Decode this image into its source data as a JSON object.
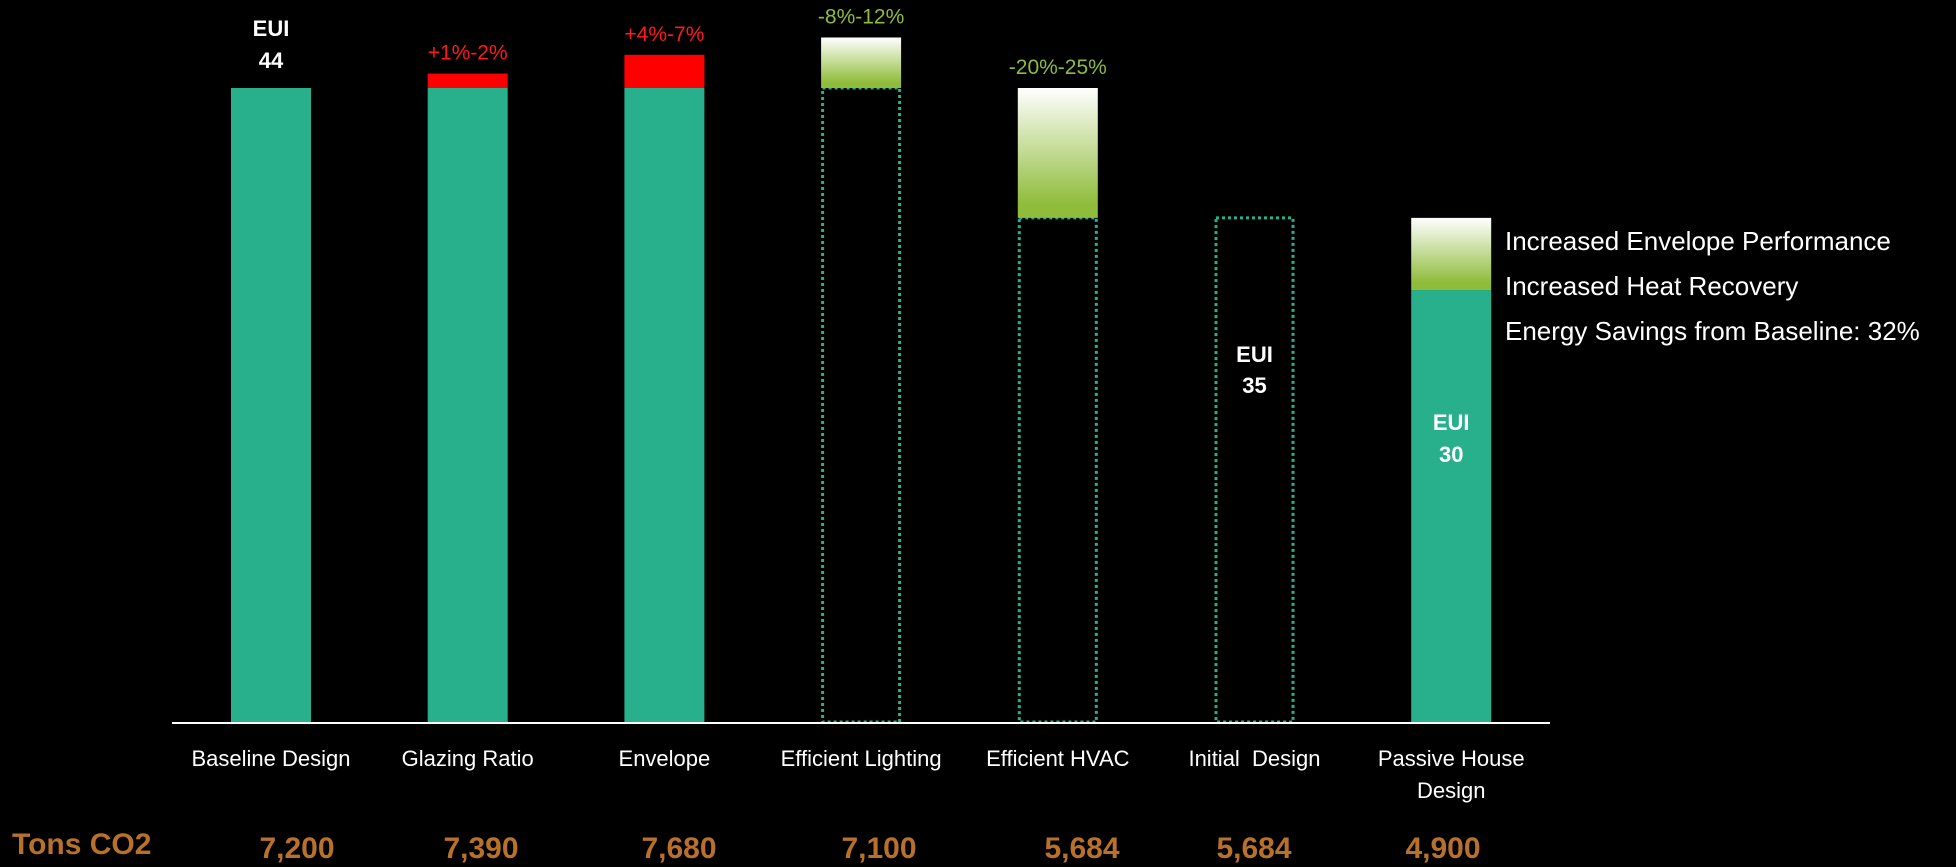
{
  "chart_data": {
    "type": "bar",
    "categories": [
      "Baseline Design",
      "Glazing Ratio",
      "Envelope",
      "Efficient Lighting",
      "Efficient HVAC",
      "Initial  Design",
      "Passive House Design"
    ],
    "base_values": [
      44,
      44,
      44,
      0,
      0,
      0,
      30
    ],
    "outline_values": [
      0,
      0,
      0,
      44,
      35,
      35,
      0
    ],
    "change_ranges": [
      null,
      [
        44,
        45
      ],
      [
        44,
        46.3
      ],
      [
        44,
        47.5
      ],
      [
        35,
        44
      ],
      null,
      [
        30,
        35
      ]
    ],
    "change_labels": [
      "",
      "+1%-2%",
      "+4%-7%",
      "-8%-12%",
      "-20%-25%",
      "",
      ""
    ],
    "change_kind": [
      "",
      "increase",
      "increase",
      "saving",
      "saving",
      "",
      "saving"
    ],
    "eui_labels": [
      {
        "index": 0,
        "title": "EUI",
        "value": "44"
      },
      {
        "index": 5,
        "title": "EUI",
        "value": "35"
      },
      {
        "index": 6,
        "title": "EUI",
        "value": "30"
      }
    ],
    "ylim": [
      0,
      50
    ],
    "grid": false,
    "colors": {
      "bar": "#28b08c",
      "increase": "#ff0000",
      "saving_top": "#ffffff",
      "saving_bottom": "#8fbc3a",
      "outline": "#28b08c",
      "increase_text": "#ff1a1a",
      "saving_text": "#8fbc3a",
      "axis": "#ffffff",
      "category_text": "#ffffff",
      "co2_text": "#b8712a"
    }
  },
  "notes": [
    "Increased  Envelope Performance",
    "Increased Heat Recovery",
    "Energy Savings from Baseline: 32%"
  ],
  "co2": {
    "label": "Tons CO2",
    "values": [
      "7,200",
      "7,390",
      "7,680",
      "7,100",
      "5,684",
      "5,684",
      "4,900"
    ]
  }
}
